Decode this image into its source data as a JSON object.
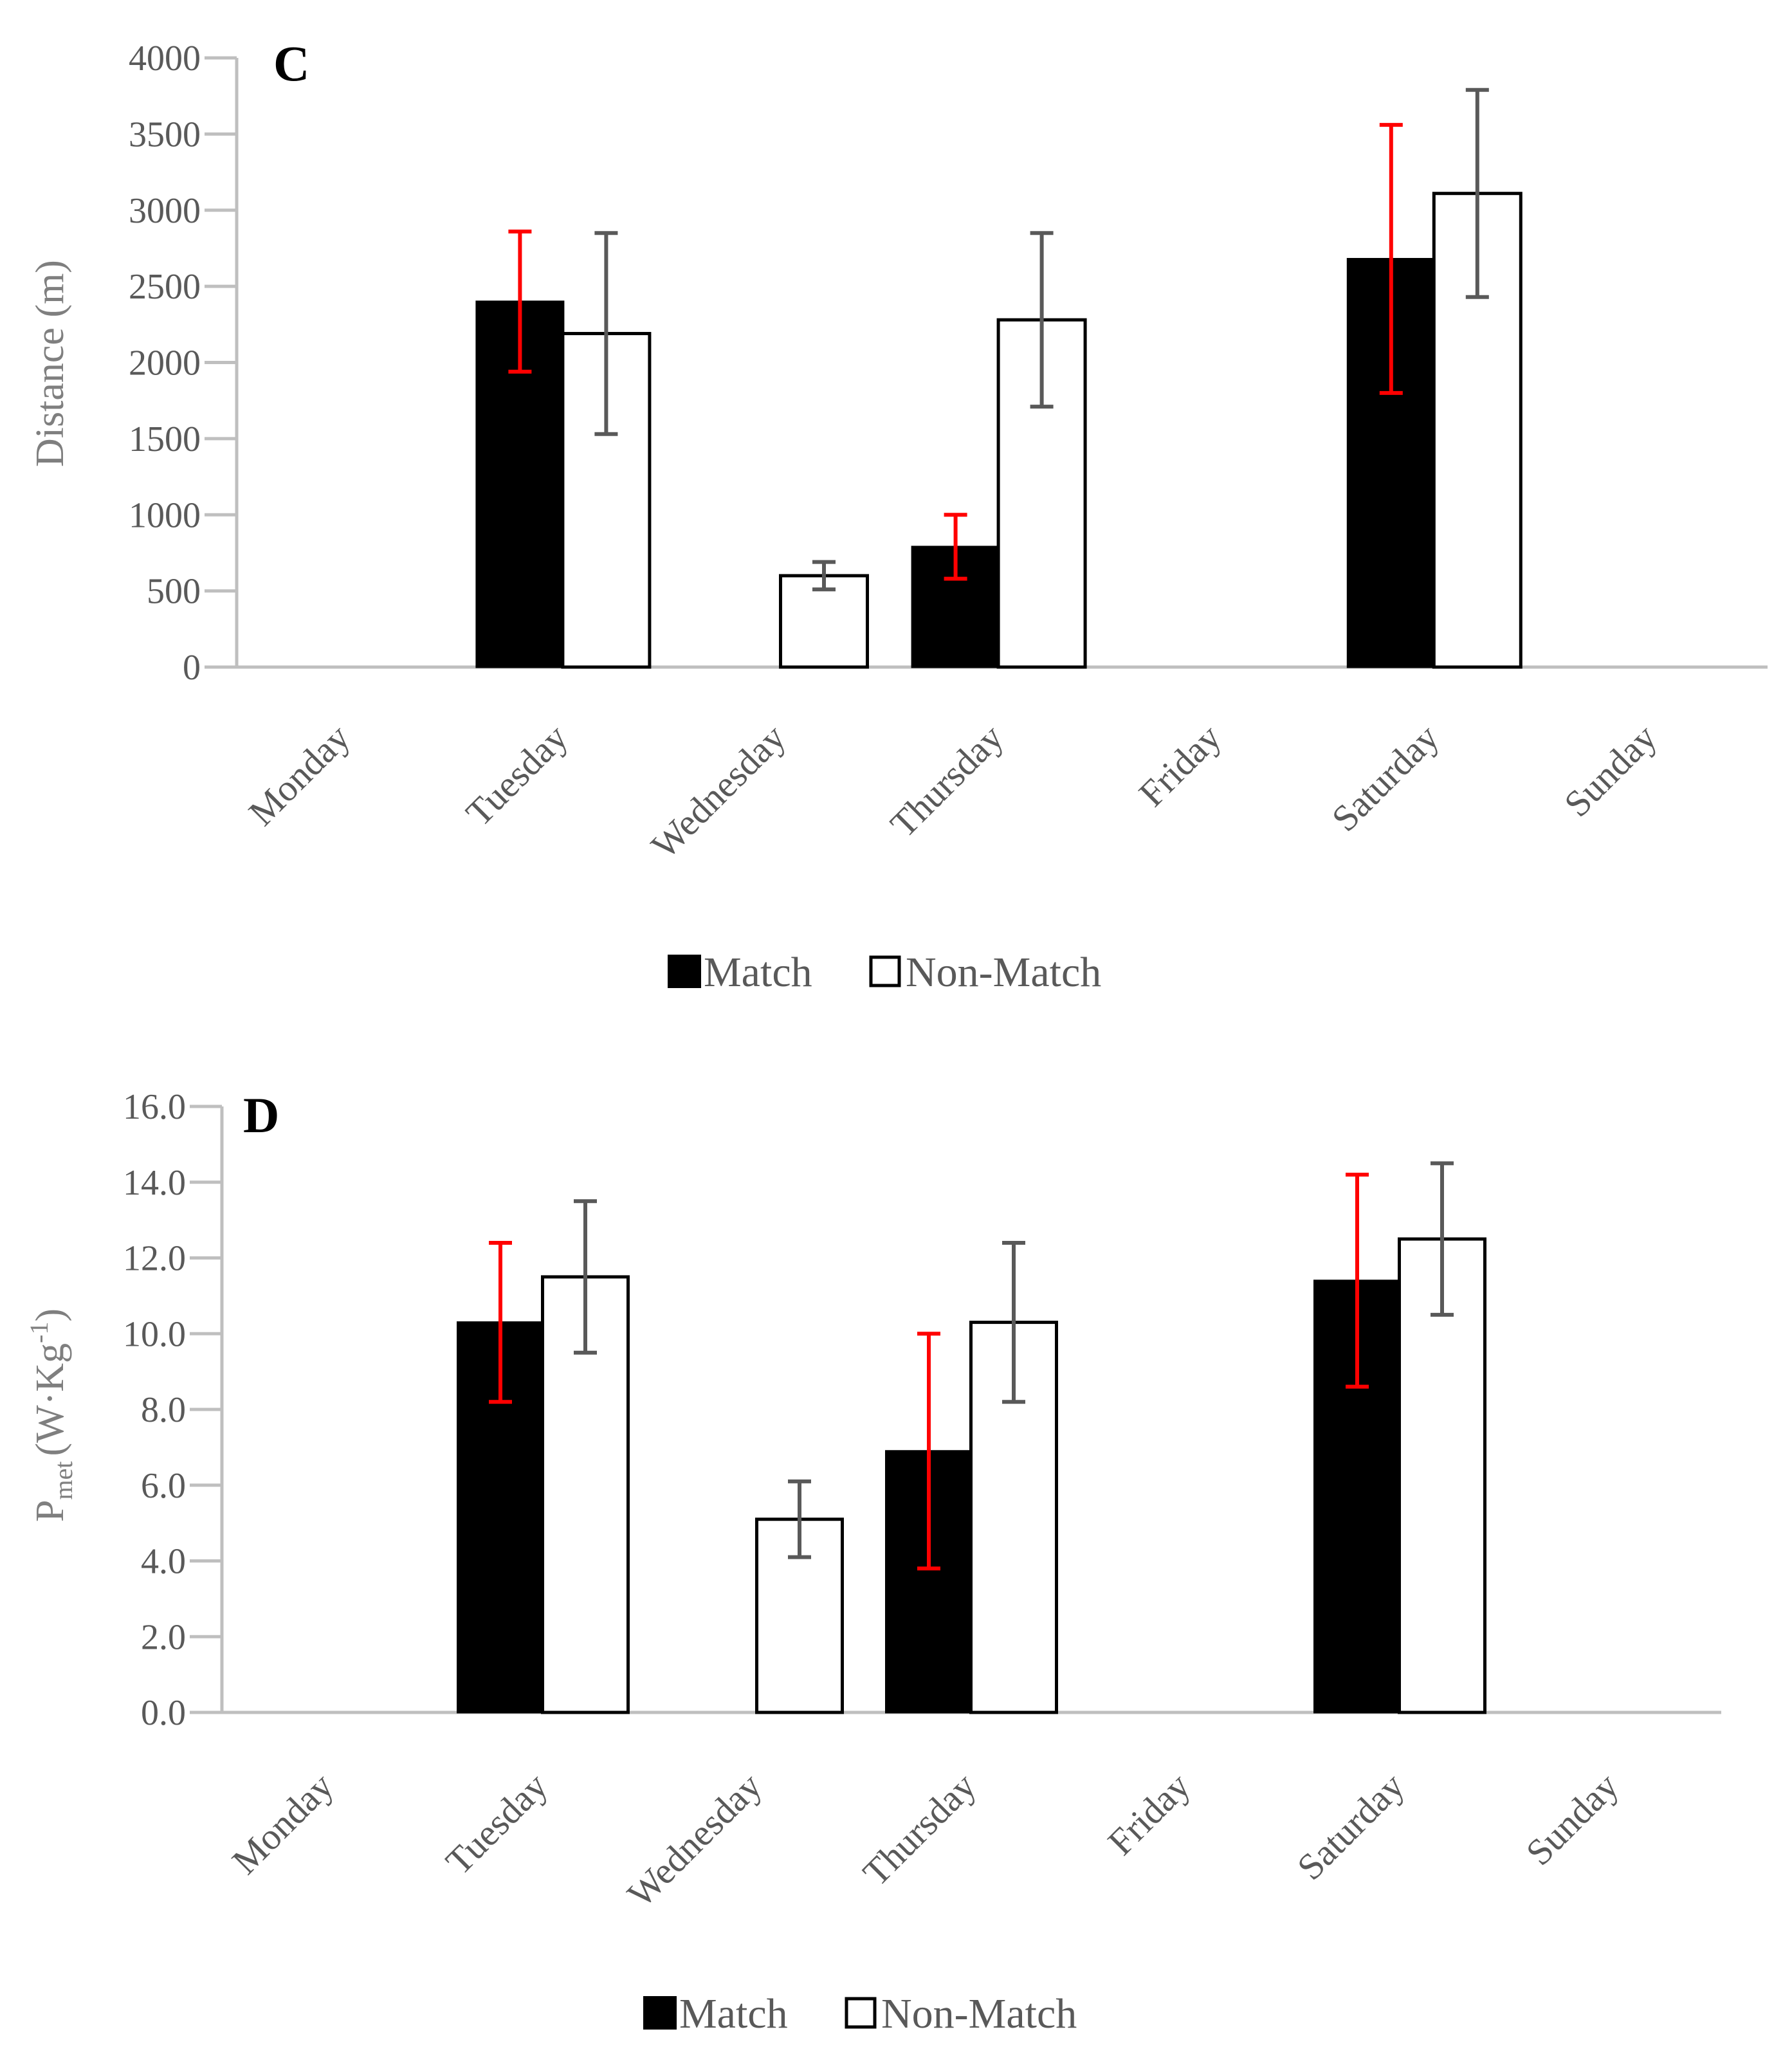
{
  "colors": {
    "match_fill": "#000000",
    "nonmatch_fill": "#ffffff",
    "bar_stroke": "#000000",
    "match_error": "#ff0000",
    "nonmatch_error": "#595959",
    "axis": "#bfbfbf",
    "tick_text": "#595959",
    "axis_title": "#7f7f7f"
  },
  "chart_data": [
    {
      "type": "bar",
      "panel_label": "C",
      "title": "",
      "ylabel": "Distance (m)",
      "xlabel": "",
      "ylim": [
        0,
        4000
      ],
      "yticks": [
        "0",
        "500",
        "1000",
        "1500",
        "2000",
        "2500",
        "3000",
        "3500",
        "4000"
      ],
      "ytick_values": [
        0,
        500,
        1000,
        1500,
        2000,
        2500,
        3000,
        3500,
        4000
      ],
      "categories": [
        "Monday",
        "Tuesday",
        "Wednesday",
        "Thursday",
        "Friday",
        "Saturday",
        "Sunday"
      ],
      "legend_position": "bottom-center",
      "series": [
        {
          "name": "Match",
          "values": [
            null,
            2400,
            null,
            790,
            null,
            2680,
            null
          ],
          "error_low": [
            null,
            1940,
            null,
            580,
            null,
            1800,
            null
          ],
          "error_high": [
            null,
            2860,
            null,
            1000,
            null,
            3560,
            null
          ]
        },
        {
          "name": "Non-Match",
          "values": [
            null,
            2190,
            600,
            2280,
            null,
            3110,
            null
          ],
          "error_low": [
            null,
            1530,
            510,
            1710,
            null,
            2430,
            null
          ],
          "error_high": [
            null,
            2850,
            690,
            2850,
            null,
            3790,
            null
          ]
        }
      ]
    },
    {
      "type": "bar",
      "panel_label": "D",
      "title": "",
      "ylabel": "P",
      "ylabel_sub": "met",
      "ylabel_rest": "(W·Kg",
      "ylabel_sup": "-1",
      "ylabel_end": ")",
      "xlabel": "",
      "ylim": [
        0,
        16
      ],
      "yticks": [
        "0.0",
        "2.0",
        "4.0",
        "6.0",
        "8.0",
        "10.0",
        "12.0",
        "14.0",
        "16.0"
      ],
      "ytick_values": [
        0,
        2,
        4,
        6,
        8,
        10,
        12,
        14,
        16
      ],
      "categories": [
        "Monday",
        "Tuesday",
        "Wednesday",
        "Thursday",
        "Friday",
        "Saturday",
        "Sunday"
      ],
      "legend_position": "bottom-center",
      "series": [
        {
          "name": "Match",
          "values": [
            null,
            10.3,
            null,
            6.9,
            null,
            11.4,
            null
          ],
          "error_low": [
            null,
            8.2,
            null,
            3.8,
            null,
            8.6,
            null
          ],
          "error_high": [
            null,
            12.4,
            null,
            10.0,
            null,
            14.2,
            null
          ]
        },
        {
          "name": "Non-Match",
          "values": [
            null,
            11.5,
            5.1,
            10.3,
            null,
            12.5,
            null
          ],
          "error_low": [
            null,
            9.5,
            4.1,
            8.2,
            null,
            10.5,
            null
          ],
          "error_high": [
            null,
            13.5,
            6.1,
            12.4,
            null,
            14.5,
            null
          ]
        }
      ]
    }
  ]
}
